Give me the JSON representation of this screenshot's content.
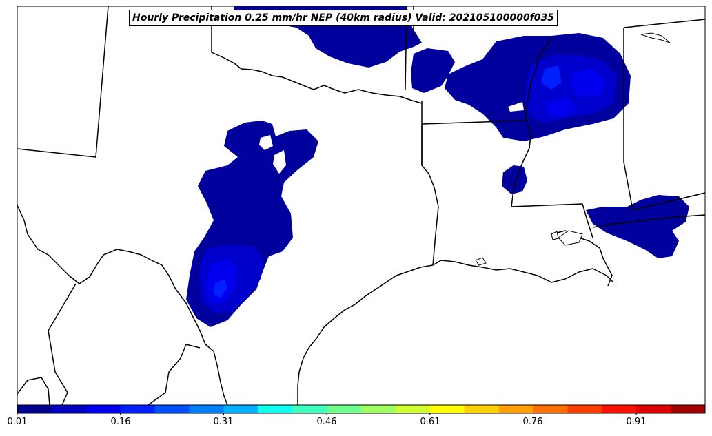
{
  "title": "Hourly Precipitation 0.25 mm/hr NEP (40km radius) Valid: 202105100000f035",
  "colorbar": {
    "min": 0.01,
    "max": 1.0,
    "step": 0.05,
    "tick_labels": [
      "0.01",
      "0.16",
      "0.31",
      "0.46",
      "0.61",
      "0.76",
      "0.91"
    ],
    "colors": [
      "#00008f",
      "#0000bf",
      "#0000ef",
      "#0020ff",
      "#0050ff",
      "#0080ff",
      "#00b0ff",
      "#10ffef",
      "#40ffbf",
      "#70ff8f",
      "#a0ff60",
      "#cfff30",
      "#ffff00",
      "#ffd000",
      "#ffa000",
      "#ff7000",
      "#ff4000",
      "#ff1000",
      "#df0000",
      "#a00000"
    ]
  },
  "colors": {
    "low_probability": "#00009c",
    "medium_probability": "#0000cc",
    "high_probability": "#0020ff",
    "boundary": "#000000",
    "background": "#ffffff"
  }
}
